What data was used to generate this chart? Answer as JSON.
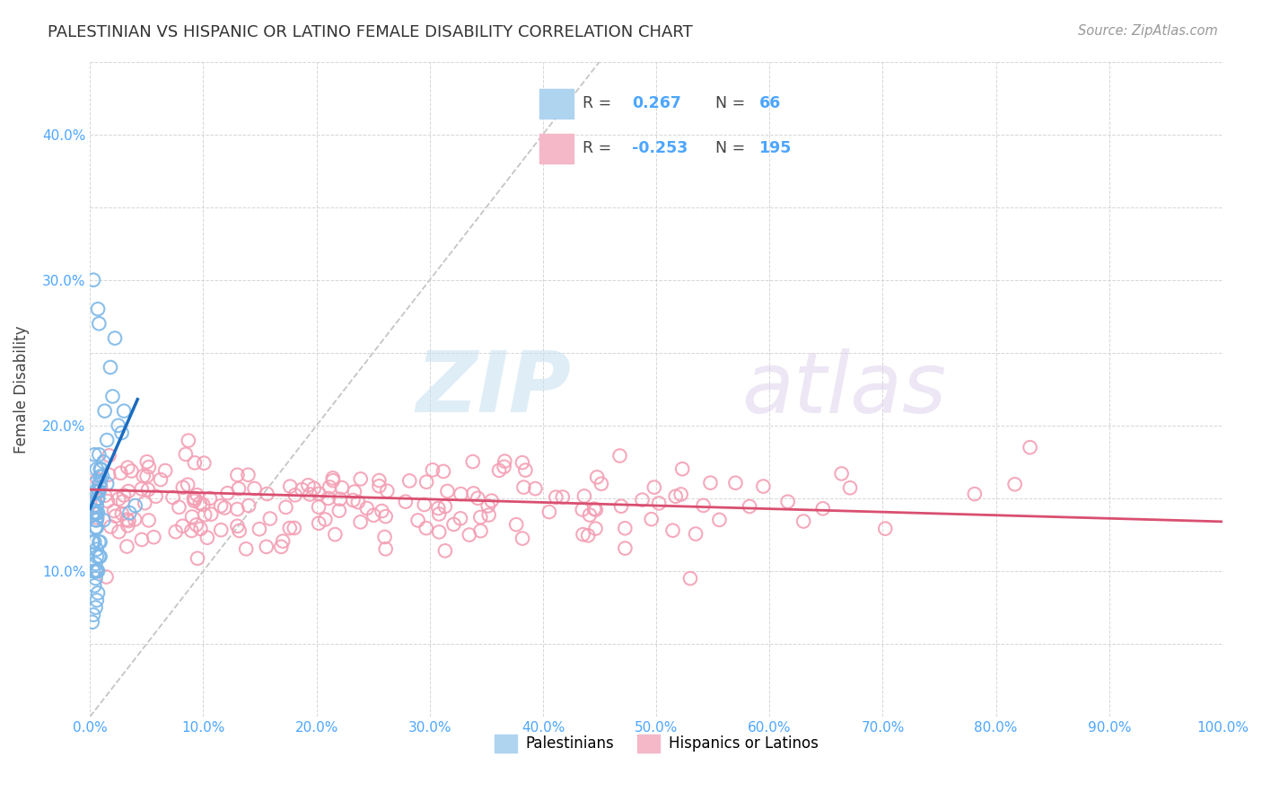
{
  "title": "PALESTINIAN VS HISPANIC OR LATINO FEMALE DISABILITY CORRELATION CHART",
  "source": "Source: ZipAtlas.com",
  "ylabel": "Female Disability",
  "background_color": "#ffffff",
  "watermark_zip": "ZIP",
  "watermark_atlas": "atlas",
  "blue_R": 0.267,
  "blue_N": 66,
  "pink_R": -0.253,
  "pink_N": 195,
  "blue_color": "#7db8e8",
  "pink_color": "#f4a0b5",
  "blue_line_color": "#1a6bbf",
  "pink_line_color": "#d94f70",
  "diagonal_color": "#bbbbbb",
  "grid_color": "#cccccc",
  "tick_color": "#4da6ff",
  "xlim": [
    0.0,
    1.0
  ],
  "ylim": [
    0.0,
    0.45
  ],
  "xtick_vals": [
    0.0,
    0.1,
    0.2,
    0.3,
    0.4,
    0.5,
    0.6,
    0.7,
    0.8,
    0.9,
    1.0
  ],
  "xtick_labels": [
    "0.0%",
    "10.0%",
    "20.0%",
    "30.0%",
    "40.0%",
    "50.0%",
    "60.0%",
    "70.0%",
    "80.0%",
    "90.0%",
    "100.0%"
  ],
  "ytick_vals": [
    0.0,
    0.05,
    0.1,
    0.15,
    0.2,
    0.25,
    0.3,
    0.35,
    0.4,
    0.45
  ],
  "ytick_labels": [
    "",
    "",
    "10.0%",
    "",
    "20.0%",
    "",
    "30.0%",
    "",
    "40.0%",
    ""
  ],
  "legend_blue_label": "Palestinians",
  "legend_pink_label": "Hispanics or Latinos",
  "blue_scatter_x": [
    0.005,
    0.008,
    0.003,
    0.006,
    0.004,
    0.007,
    0.009,
    0.002,
    0.006,
    0.005,
    0.01,
    0.015,
    0.008,
    0.012,
    0.006,
    0.003,
    0.009,
    0.007,
    0.004,
    0.011,
    0.005,
    0.013,
    0.008,
    0.006,
    0.007,
    0.004,
    0.009,
    0.003,
    0.005,
    0.008,
    0.006,
    0.007,
    0.004,
    0.009,
    0.005,
    0.006,
    0.008,
    0.003,
    0.007,
    0.005,
    0.02,
    0.025,
    0.03,
    0.022,
    0.018,
    0.028,
    0.015,
    0.012,
    0.035,
    0.04,
    0.005,
    0.006,
    0.007,
    0.003,
    0.004,
    0.008,
    0.009,
    0.002,
    0.005,
    0.006,
    0.007,
    0.003,
    0.008,
    0.004,
    0.006,
    0.005
  ],
  "blue_scatter_y": [
    0.155,
    0.16,
    0.14,
    0.17,
    0.18,
    0.15,
    0.165,
    0.12,
    0.11,
    0.13,
    0.17,
    0.16,
    0.155,
    0.175,
    0.145,
    0.14,
    0.16,
    0.155,
    0.14,
    0.165,
    0.13,
    0.21,
    0.18,
    0.14,
    0.15,
    0.16,
    0.17,
    0.12,
    0.135,
    0.155,
    0.13,
    0.14,
    0.12,
    0.11,
    0.105,
    0.115,
    0.12,
    0.1,
    0.1,
    0.095,
    0.22,
    0.2,
    0.21,
    0.26,
    0.24,
    0.195,
    0.19,
    0.135,
    0.14,
    0.145,
    0.075,
    0.08,
    0.085,
    0.07,
    0.09,
    0.11,
    0.12,
    0.065,
    0.1,
    0.1,
    0.28,
    0.3,
    0.27,
    0.145,
    0.135,
    0.14
  ],
  "blue_trend_x": [
    0.0,
    0.042
  ],
  "blue_trend_y": [
    0.143,
    0.218
  ],
  "pink_trend_x": [
    0.0,
    1.0
  ],
  "pink_trend_y": [
    0.156,
    0.134
  ],
  "pink_seed": 7,
  "pink_n": 195
}
